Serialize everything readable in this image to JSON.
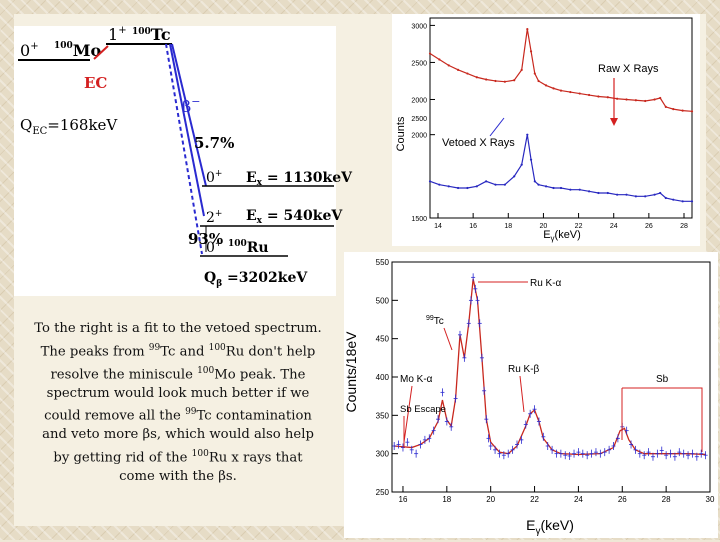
{
  "decay_scheme": {
    "parent_spin": "0",
    "parent_plus": "+",
    "parent_mass": "100",
    "parent_symbol": "Mo",
    "ec_label": "EC",
    "tc_spin": "1",
    "tc_plus": "+",
    "tc_mass": "100",
    "tc_symbol": "Tc",
    "q_ec_label": "Q",
    "q_ec_sub": "EC",
    "q_ec_value": "=168keV",
    "beta_minus_label": "β",
    "beta_minus_sup": "−",
    "branch_small": "5.7%",
    "branch_large": "93%",
    "level1_spin": "0",
    "level1_plus": "+",
    "level1_energy_prefix": "E",
    "level1_energy_sub": "x",
    "level1_energy": " = 1130keV",
    "level2_spin": "2",
    "level2_plus": "+",
    "level2_energy_prefix": "E",
    "level2_energy_sub": "x",
    "level2_energy": " = 540keV",
    "ground_spin": "0",
    "ground_plus": "+",
    "ground_mass": "100",
    "ground_symbol": "Ru",
    "q_beta_label": "Q",
    "q_beta_sub": "β",
    "q_beta_value": " =3202keV",
    "colors": {
      "ec": "#d42020",
      "beta": "#2a2ad0",
      "level": "#000000"
    }
  },
  "caption": {
    "line1": "To the right is a fit to the vetoed spectrum.",
    "line2_pre": "The peaks from ",
    "line2_sup1": "99",
    "line2_mid": "Tc and ",
    "line2_sup2": "100",
    "line2_post": "Ru don't help",
    "line3_pre": "resolve the miniscule ",
    "line3_sup": "100",
    "line3_post": "Mo peak. The",
    "line4": "spectrum would look much better if we",
    "line5_pre": "could remove all the ",
    "line5_sup": "99",
    "line5_post": "Tc contamination",
    "line6": "and veto more βs, which would also help",
    "line7_pre": "by getting rid of the ",
    "line7_sup": "100",
    "line7_post": "Ru x rays that",
    "line8": "come with the βs."
  },
  "chart_data": [
    {
      "type": "line",
      "xlabel_prefix": "E",
      "xlabel_sub": "γ",
      "xlabel_unit": "(keV)",
      "ylabel": "Counts",
      "x_ticks": [
        "14",
        "16",
        "18",
        "20",
        "22",
        "24",
        "26",
        "28"
      ],
      "y_ticks_upper": [
        "3000",
        "2500",
        "2000",
        "1500"
      ],
      "y_ticks_lower": [
        "2500",
        "2000",
        "1500"
      ],
      "xlim": [
        14,
        28
      ],
      "annotations": [
        "Raw X Rays",
        "Vetoed X Rays"
      ],
      "series": [
        {
          "name": "Raw X Rays",
          "color": "#c8281e",
          "x": [
            14,
            14.5,
            15,
            15.5,
            16,
            16.5,
            17,
            17.5,
            18,
            18.5,
            18.9,
            19.2,
            19.4,
            19.6,
            19.8,
            20.2,
            20.6,
            21,
            21.5,
            22,
            22.5,
            23,
            23.5,
            24,
            24.5,
            25,
            25.5,
            26,
            26.3,
            26.6,
            27,
            27.5,
            28
          ],
          "y": [
            2620,
            2540,
            2460,
            2400,
            2350,
            2300,
            2270,
            2250,
            2240,
            2260,
            2400,
            2950,
            2650,
            2350,
            2250,
            2190,
            2150,
            2120,
            2100,
            2080,
            2060,
            2040,
            2030,
            2010,
            2000,
            1990,
            1980,
            2000,
            2020,
            1900,
            1870,
            1850,
            1840
          ]
        },
        {
          "name": "Vetoed X Rays",
          "color": "#2828c0",
          "x": [
            14,
            14.5,
            15,
            15.5,
            16,
            16.5,
            17,
            17.5,
            18,
            18.5,
            18.9,
            19.2,
            19.4,
            19.6,
            19.8,
            20.2,
            20.6,
            21,
            21.5,
            22,
            22.5,
            23,
            23.5,
            24,
            24.5,
            25,
            25.5,
            26,
            26.3,
            26.6,
            27,
            27.5,
            28
          ],
          "y": [
            1720,
            1700,
            1690,
            1680,
            1680,
            1690,
            1720,
            1700,
            1700,
            1750,
            1820,
            2000,
            1850,
            1720,
            1700,
            1690,
            1680,
            1680,
            1670,
            1670,
            1660,
            1650,
            1650,
            1640,
            1640,
            1630,
            1630,
            1640,
            1650,
            1620,
            1610,
            1600,
            1600
          ]
        }
      ]
    },
    {
      "type": "scatter",
      "xlabel_prefix": "E",
      "xlabel_sub": "γ",
      "xlabel_unit": "(keV)",
      "ylabel": "Counts/18eV",
      "xlim": [
        15.5,
        30
      ],
      "ylim": [
        250,
        550
      ],
      "x_ticks": [
        16,
        18,
        20,
        22,
        24,
        26,
        28,
        30
      ],
      "y_ticks": [
        250,
        300,
        350,
        400,
        450,
        500,
        550
      ],
      "peak_labels": [
        "Ru K-α",
        "99Tc",
        "Mo K-α",
        "Ru K-β",
        "Sb",
        "Sb Escape"
      ],
      "peak_label_99tc_sup": "99",
      "peak_label_99tc_text": "Tc",
      "series": [
        {
          "name": "data",
          "color": "#2a2ad0",
          "x": [
            15.6,
            15.8,
            16.0,
            16.2,
            16.4,
            16.6,
            16.8,
            17.0,
            17.2,
            17.4,
            17.6,
            17.8,
            18.0,
            18.2,
            18.4,
            18.6,
            18.8,
            19.0,
            19.1,
            19.2,
            19.3,
            19.4,
            19.5,
            19.6,
            19.7,
            19.8,
            19.9,
            20.0,
            20.2,
            20.4,
            20.6,
            20.8,
            21.0,
            21.2,
            21.4,
            21.6,
            21.8,
            22.0,
            22.2,
            22.4,
            22.6,
            22.8,
            23.0,
            23.2,
            23.4,
            23.6,
            23.8,
            24.0,
            24.2,
            24.4,
            24.6,
            24.8,
            25.0,
            25.2,
            25.4,
            25.6,
            25.8,
            26.0,
            26.2,
            26.4,
            26.6,
            26.8,
            27.0,
            27.2,
            27.4,
            27.6,
            27.8,
            28.0,
            28.2,
            28.4,
            28.6,
            28.8,
            29.0,
            29.2,
            29.4,
            29.6,
            29.8
          ],
          "y": [
            310,
            312,
            308,
            315,
            305,
            300,
            312,
            318,
            320,
            330,
            345,
            380,
            342,
            335,
            372,
            455,
            425,
            470,
            500,
            530,
            515,
            500,
            470,
            425,
            382,
            345,
            320,
            310,
            305,
            300,
            298,
            300,
            305,
            312,
            318,
            338,
            352,
            358,
            342,
            322,
            310,
            305,
            300,
            300,
            298,
            297,
            300,
            302,
            300,
            298,
            300,
            302,
            300,
            302,
            305,
            310,
            320,
            335,
            330,
            312,
            305,
            300,
            298,
            302,
            296,
            300,
            304,
            298,
            300,
            296,
            302,
            300,
            298,
            300,
            296,
            300,
            298
          ]
        },
        {
          "name": "fit",
          "color": "#c8281e",
          "x": [
            15.6,
            16.0,
            16.4,
            16.8,
            17.2,
            17.6,
            17.8,
            18.0,
            18.2,
            18.4,
            18.6,
            18.8,
            19.0,
            19.2,
            19.4,
            19.6,
            19.8,
            20.0,
            20.4,
            20.8,
            21.2,
            21.6,
            21.8,
            22.0,
            22.2,
            22.4,
            22.8,
            23.2,
            24.0,
            25.0,
            25.6,
            25.9,
            26.1,
            26.3,
            26.6,
            27.0,
            28.0,
            29.0,
            29.8
          ],
          "y": [
            310,
            309,
            308,
            312,
            320,
            342,
            370,
            344,
            336,
            372,
            455,
            425,
            470,
            528,
            500,
            425,
            345,
            315,
            302,
            300,
            310,
            336,
            352,
            357,
            342,
            320,
            305,
            300,
            299,
            300,
            308,
            330,
            333,
            318,
            305,
            300,
            300,
            300,
            299
          ]
        }
      ]
    }
  ]
}
